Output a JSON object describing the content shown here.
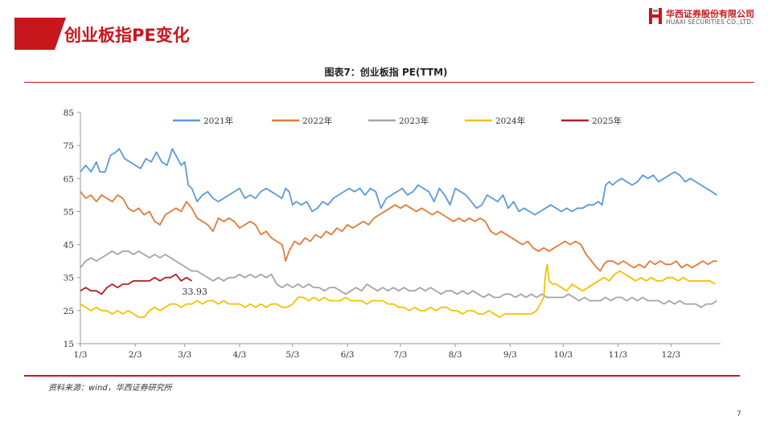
{
  "slide": {
    "title": "创业板指PE变化",
    "page_number": "7",
    "source_note": "资料来源：wind，华西证券研究所"
  },
  "logo": {
    "name_cn": "华西证券股份有限公司",
    "name_en": "HUAXI SECURITIES CO.,LTD."
  },
  "figure": {
    "caption": "图表7：创业板指 PE(TTM)"
  },
  "colors": {
    "brand_red": "#c8161d",
    "s2021": "#5b9bd5",
    "s2022": "#e07b39",
    "s2023": "#a5a5a5",
    "s2024": "#f5c000",
    "s2025": "#b22222"
  },
  "chart_data": {
    "type": "line",
    "title": "",
    "xlabel": "",
    "ylabel": "",
    "x_unit": "day_of_year",
    "ylim": [
      15,
      85
    ],
    "yticks": [
      15,
      25,
      35,
      45,
      55,
      65,
      75,
      85
    ],
    "xticks": [
      {
        "label": "1/3",
        "x": 3
      },
      {
        "label": "2/3",
        "x": 34
      },
      {
        "label": "3/3",
        "x": 62
      },
      {
        "label": "4/3",
        "x": 93
      },
      {
        "label": "5/3",
        "x": 123
      },
      {
        "label": "6/3",
        "x": 154
      },
      {
        "label": "7/3",
        "x": 184
      },
      {
        "label": "8/3",
        "x": 215
      },
      {
        "label": "9/3",
        "x": 246
      },
      {
        "label": "10/3",
        "x": 276
      },
      {
        "label": "11/3",
        "x": 307
      },
      {
        "label": "12/3",
        "x": 337
      }
    ],
    "grid": false,
    "legend_position": "top",
    "series": [
      {
        "name": "2021年",
        "color_key": "s2021",
        "x": [
          3,
          6,
          9,
          12,
          14,
          17,
          20,
          23,
          25,
          28,
          31,
          34,
          37,
          40,
          43,
          46,
          49,
          52,
          55,
          58,
          60,
          62,
          64,
          66,
          69,
          72,
          75,
          78,
          81,
          84,
          87,
          90,
          93,
          96,
          99,
          102,
          105,
          108,
          111,
          114,
          117,
          119,
          121,
          123,
          125,
          128,
          131,
          134,
          137,
          140,
          143,
          146,
          149,
          152,
          155,
          158,
          161,
          164,
          167,
          170,
          173,
          176,
          179,
          182,
          185,
          188,
          191,
          194,
          197,
          200,
          203,
          206,
          209,
          212,
          215,
          218,
          221,
          224,
          227,
          230,
          233,
          236,
          239,
          242,
          245,
          248,
          251,
          254,
          257,
          260,
          263,
          266,
          269,
          272,
          275,
          278,
          281,
          284,
          287,
          290,
          293,
          296,
          298,
          300,
          302,
          304,
          306,
          309,
          312,
          315,
          318,
          321,
          324,
          327,
          330,
          333,
          336,
          339,
          342,
          345,
          348,
          351,
          354,
          357,
          360,
          363
        ],
        "values": [
          67,
          69,
          67,
          70,
          67,
          67,
          72,
          73,
          74,
          71,
          70,
          69,
          68,
          71,
          70,
          73,
          70,
          69,
          74,
          71,
          69,
          70,
          63,
          62,
          58,
          60,
          61,
          59,
          58,
          59,
          60,
          61,
          62,
          59,
          60,
          59,
          61,
          62,
          61,
          60,
          59,
          62,
          61,
          57,
          58,
          57,
          58,
          55,
          56,
          58,
          57,
          59,
          60,
          61,
          62,
          61,
          62,
          60,
          62,
          61,
          56,
          59,
          60,
          61,
          62,
          60,
          61,
          63,
          62,
          61,
          58,
          62,
          60,
          57,
          62,
          61,
          60,
          58,
          56,
          57,
          60,
          59,
          58,
          60,
          56,
          58,
          55,
          56,
          55,
          54,
          55,
          56,
          57,
          56,
          55,
          56,
          55,
          56,
          56,
          57,
          57,
          58,
          57,
          63,
          64,
          63,
          64,
          65,
          64,
          63,
          64,
          66,
          65,
          66,
          64,
          65,
          66,
          67,
          66,
          64,
          65,
          64,
          63,
          62,
          61,
          60
        ]
      },
      {
        "name": "2022年",
        "color_key": "s2022",
        "x": [
          3,
          6,
          9,
          12,
          15,
          18,
          21,
          24,
          27,
          30,
          33,
          36,
          39,
          42,
          45,
          48,
          51,
          54,
          57,
          60,
          63,
          66,
          69,
          72,
          75,
          78,
          81,
          84,
          87,
          90,
          93,
          96,
          99,
          102,
          105,
          108,
          111,
          114,
          117,
          118,
          119,
          121,
          124,
          127,
          130,
          133,
          136,
          139,
          142,
          145,
          148,
          151,
          154,
          157,
          160,
          163,
          166,
          169,
          172,
          175,
          178,
          181,
          184,
          187,
          190,
          193,
          196,
          199,
          202,
          205,
          208,
          211,
          214,
          217,
          220,
          223,
          226,
          229,
          232,
          235,
          238,
          241,
          244,
          247,
          250,
          253,
          256,
          259,
          262,
          265,
          268,
          271,
          274,
          277,
          280,
          283,
          286,
          289,
          292,
          295,
          297,
          299,
          301,
          304,
          307,
          310,
          313,
          316,
          319,
          322,
          325,
          328,
          331,
          334,
          337,
          340,
          343,
          346,
          349,
          352,
          355,
          358,
          361,
          363
        ],
        "values": [
          61,
          59,
          60,
          58,
          60,
          59,
          58,
          60,
          59,
          56,
          55,
          56,
          54,
          55,
          52,
          51,
          54,
          55,
          56,
          55,
          58,
          56,
          53,
          52,
          51,
          49,
          53,
          52,
          53,
          52,
          50,
          51,
          52,
          51,
          48,
          49,
          47,
          46,
          45,
          43,
          40,
          43,
          46,
          45,
          47,
          46,
          48,
          47,
          49,
          48,
          50,
          49,
          51,
          50,
          51,
          52,
          51,
          53,
          54,
          55,
          56,
          57,
          56,
          57,
          56,
          55,
          56,
          55,
          54,
          55,
          54,
          53,
          52,
          53,
          52,
          53,
          52,
          53,
          52,
          49,
          48,
          49,
          48,
          47,
          46,
          45,
          46,
          44,
          43,
          44,
          43,
          44,
          45,
          46,
          45,
          46,
          45,
          42,
          40,
          38,
          37,
          39,
          40,
          40,
          39,
          40,
          39,
          38,
          39,
          38,
          40,
          39,
          40,
          39,
          39,
          40,
          38,
          39,
          38,
          39,
          40,
          39,
          40,
          40
        ]
      },
      {
        "name": "2023年",
        "color_key": "s2023",
        "x": [
          3,
          6,
          9,
          12,
          15,
          18,
          21,
          24,
          27,
          30,
          33,
          36,
          39,
          42,
          45,
          48,
          51,
          54,
          57,
          60,
          63,
          66,
          69,
          72,
          75,
          78,
          81,
          84,
          87,
          90,
          93,
          96,
          99,
          102,
          105,
          108,
          111,
          114,
          117,
          120,
          123,
          126,
          129,
          132,
          135,
          138,
          141,
          144,
          147,
          150,
          153,
          156,
          159,
          162,
          165,
          168,
          171,
          174,
          177,
          180,
          183,
          186,
          189,
          192,
          195,
          198,
          201,
          204,
          207,
          210,
          213,
          216,
          219,
          222,
          225,
          228,
          231,
          234,
          237,
          240,
          243,
          246,
          249,
          252,
          255,
          258,
          261,
          264,
          267,
          270,
          273,
          276,
          279,
          282,
          285,
          288,
          291,
          294,
          297,
          300,
          303,
          306,
          309,
          312,
          315,
          318,
          321,
          324,
          327,
          330,
          333,
          336,
          339,
          342,
          345,
          348,
          351,
          354,
          357,
          360,
          363
        ],
        "values": [
          38,
          40,
          41,
          40,
          41,
          42,
          43,
          42,
          43,
          43,
          42,
          43,
          42,
          41,
          42,
          41,
          42,
          41,
          40,
          39,
          38,
          37,
          37,
          36,
          35,
          34,
          35,
          34,
          35,
          35,
          36,
          35,
          36,
          35,
          36,
          35,
          36,
          33,
          32,
          33,
          32,
          33,
          32,
          33,
          32,
          32,
          31,
          32,
          32,
          31,
          30,
          31,
          32,
          31,
          33,
          32,
          31,
          32,
          31,
          32,
          31,
          32,
          31,
          31,
          32,
          31,
          32,
          31,
          30,
          31,
          31,
          30,
          31,
          30,
          31,
          30,
          29,
          30,
          29,
          29,
          30,
          30,
          29,
          30,
          29,
          30,
          29,
          30,
          29,
          29,
          29,
          29,
          30,
          29,
          28,
          29,
          28,
          28,
          28,
          29,
          28,
          29,
          29,
          28,
          29,
          28,
          29,
          28,
          28,
          28,
          27,
          28,
          27,
          28,
          27,
          27,
          27,
          26,
          27,
          27,
          28
        ]
      },
      {
        "name": "2024年",
        "color_key": "s2024",
        "x": [
          3,
          6,
          9,
          12,
          15,
          18,
          21,
          24,
          27,
          30,
          33,
          36,
          39,
          42,
          45,
          48,
          51,
          54,
          57,
          60,
          63,
          66,
          69,
          72,
          75,
          78,
          81,
          84,
          87,
          90,
          93,
          96,
          99,
          102,
          105,
          108,
          111,
          114,
          117,
          120,
          123,
          126,
          129,
          132,
          135,
          138,
          141,
          144,
          147,
          150,
          153,
          156,
          159,
          162,
          165,
          168,
          171,
          174,
          177,
          180,
          183,
          186,
          189,
          192,
          195,
          198,
          201,
          204,
          207,
          210,
          213,
          216,
          219,
          222,
          225,
          228,
          231,
          234,
          237,
          240,
          243,
          246,
          249,
          252,
          255,
          258,
          261,
          264,
          265,
          266,
          267,
          268,
          270,
          272,
          275,
          278,
          281,
          284,
          287,
          290,
          293,
          296,
          299,
          302,
          305,
          308,
          311,
          314,
          317,
          320,
          323,
          326,
          329,
          332,
          335,
          338,
          341,
          344,
          347,
          350,
          353,
          356,
          359,
          362
        ],
        "values": [
          27,
          26,
          25,
          26,
          25,
          25,
          24,
          25,
          24,
          25,
          24,
          23,
          23,
          25,
          26,
          25,
          26,
          27,
          27,
          26,
          27,
          27,
          28,
          27,
          28,
          28,
          27,
          28,
          27,
          27,
          27,
          26,
          27,
          26,
          27,
          26,
          27,
          27,
          26,
          26,
          27,
          29,
          29,
          28,
          29,
          28,
          29,
          28,
          28,
          28,
          29,
          28,
          28,
          28,
          27,
          28,
          28,
          28,
          27,
          27,
          26,
          26,
          25,
          26,
          25,
          25,
          26,
          25,
          26,
          26,
          25,
          25,
          24,
          25,
          25,
          24,
          24,
          25,
          24,
          23,
          24,
          24,
          24,
          24,
          24,
          24,
          25,
          28,
          29,
          36,
          39,
          34,
          33,
          33,
          32,
          31,
          33,
          32,
          31,
          32,
          33,
          34,
          35,
          34,
          36,
          37,
          36,
          35,
          34,
          35,
          34,
          35,
          34,
          34,
          35,
          35,
          34,
          35,
          34,
          34,
          34,
          34,
          34,
          33
        ]
      },
      {
        "name": "2025年",
        "color_key": "s2025",
        "x": [
          3,
          6,
          9,
          12,
          15,
          18,
          21,
          24,
          27,
          30,
          33,
          36,
          39,
          42,
          45,
          48,
          51,
          54,
          57,
          60,
          63,
          66
        ],
        "values": [
          31,
          32,
          31,
          31,
          30,
          32,
          33,
          32,
          33,
          33,
          34,
          34,
          34,
          34,
          35,
          34,
          35,
          35,
          36,
          34,
          35,
          34
        ],
        "end_label": "33.93"
      }
    ]
  }
}
